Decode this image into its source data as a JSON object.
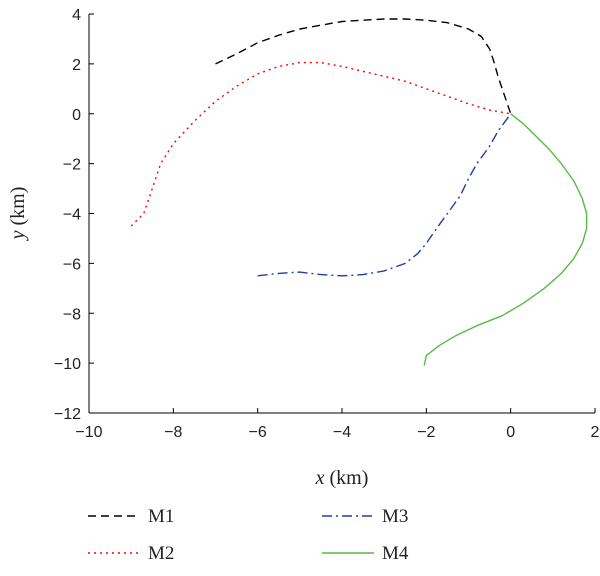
{
  "chart_data": {
    "type": "line",
    "title": "",
    "xlabel": {
      "var": "x",
      "unit": " (km)"
    },
    "ylabel": {
      "var": "y",
      "unit": " (km)"
    },
    "xlim": [
      -10,
      2
    ],
    "ylim": [
      -12,
      4
    ],
    "xticks": [
      -10,
      -8,
      -6,
      -4,
      -2,
      0,
      2
    ],
    "yticks": [
      -12,
      -10,
      -8,
      -6,
      -4,
      -2,
      0,
      2,
      4
    ],
    "xtick_labels": [
      "−10",
      "−8",
      "−6",
      "−4",
      "−2",
      "0",
      "2"
    ],
    "ytick_labels": [
      "−12",
      "−10",
      "−8",
      "−6",
      "−4",
      "−2",
      "0",
      "2",
      "4"
    ],
    "grid": false,
    "legend_placement": "bottom",
    "series": [
      {
        "name": "M1",
        "color": "#000000",
        "style": "dashed",
        "x": [
          -7.0,
          -6.5,
          -6.0,
          -5.5,
          -5.0,
          -4.5,
          -4.0,
          -3.5,
          -3.0,
          -2.5,
          -2.0,
          -1.5,
          -1.0,
          -0.7,
          -0.5,
          -0.4,
          -0.3,
          -0.2,
          -0.1,
          0.0
        ],
        "y": [
          2.0,
          2.4,
          2.85,
          3.15,
          3.4,
          3.55,
          3.7,
          3.75,
          3.8,
          3.8,
          3.75,
          3.65,
          3.4,
          3.1,
          2.6,
          2.1,
          1.5,
          1.0,
          0.5,
          0.0
        ]
      },
      {
        "name": "M2",
        "color": "#ff0000",
        "style": "dotted",
        "x": [
          -9.0,
          -8.7,
          -8.5,
          -8.3,
          -8.0,
          -7.5,
          -7.0,
          -6.5,
          -6.0,
          -5.5,
          -5.0,
          -4.5,
          -4.0,
          -3.5,
          -3.0,
          -2.5,
          -2.0,
          -1.5,
          -1.0,
          -0.5,
          0.0
        ],
        "y": [
          -4.5,
          -4.0,
          -3.0,
          -2.0,
          -1.2,
          -0.3,
          0.5,
          1.1,
          1.6,
          1.9,
          2.05,
          2.05,
          1.9,
          1.7,
          1.5,
          1.3,
          1.0,
          0.7,
          0.4,
          0.15,
          0.0
        ]
      },
      {
        "name": "M3",
        "color": "#1f3f9f",
        "style": "dashdot",
        "x": [
          -6.0,
          -5.5,
          -5.0,
          -4.5,
          -4.0,
          -3.5,
          -3.0,
          -2.5,
          -2.2,
          -2.0,
          -1.8,
          -1.5,
          -1.2,
          -1.0,
          -0.8,
          -0.5,
          -0.3,
          0.0
        ],
        "y": [
          -6.5,
          -6.4,
          -6.35,
          -6.45,
          -6.5,
          -6.45,
          -6.3,
          -6.0,
          -5.6,
          -5.2,
          -4.7,
          -4.0,
          -3.3,
          -2.6,
          -2.0,
          -1.3,
          -0.7,
          0.0
        ]
      },
      {
        "name": "M4",
        "color": "#55bb44",
        "style": "solid",
        "x": [
          0.0,
          0.3,
          0.6,
          0.9,
          1.2,
          1.5,
          1.7,
          1.8,
          1.8,
          1.7,
          1.5,
          1.2,
          0.8,
          0.3,
          -0.2,
          -0.8,
          -1.3,
          -1.7,
          -2.0,
          -2.05
        ],
        "y": [
          0.0,
          -0.4,
          -0.9,
          -1.4,
          -2.0,
          -2.7,
          -3.4,
          -4.0,
          -4.6,
          -5.2,
          -5.8,
          -6.4,
          -7.0,
          -7.6,
          -8.1,
          -8.5,
          -8.9,
          -9.3,
          -9.7,
          -10.1
        ]
      }
    ]
  }
}
